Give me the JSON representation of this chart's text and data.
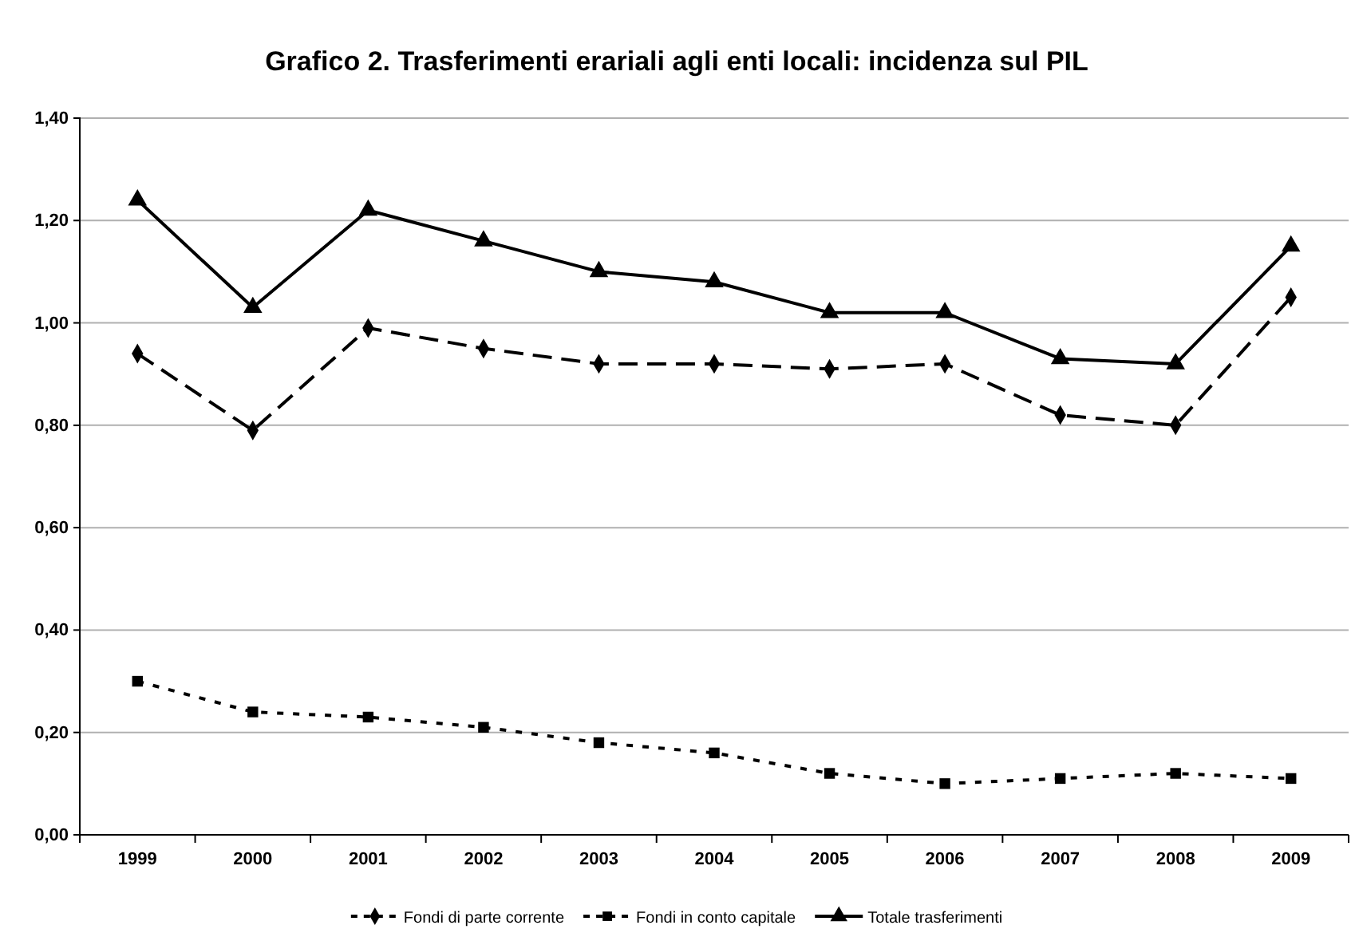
{
  "chart_data": {
    "type": "line",
    "title": "Grafico 2. Trasferimenti erariali agli enti locali: incidenza sul PIL",
    "categories": [
      "1999",
      "2000",
      "2001",
      "2002",
      "2003",
      "2004",
      "2005",
      "2006",
      "2007",
      "2008",
      "2009"
    ],
    "series": [
      {
        "name": "Fondi di parte corrente",
        "color": "#000000",
        "marker": "diamond",
        "line_style": "dashed",
        "values": [
          0.94,
          0.79,
          0.99,
          0.95,
          0.92,
          0.92,
          0.91,
          0.92,
          0.82,
          0.8,
          1.05
        ]
      },
      {
        "name": "Fondi in conto capitale",
        "color": "#000000",
        "marker": "square",
        "line_style": "dotted",
        "values": [
          0.3,
          0.24,
          0.23,
          0.21,
          0.18,
          0.16,
          0.12,
          0.1,
          0.11,
          0.12,
          0.11
        ]
      },
      {
        "name": "Totale trasferimenti",
        "color": "#000000",
        "marker": "triangle",
        "line_style": "solid",
        "values": [
          1.24,
          1.03,
          1.22,
          1.16,
          1.1,
          1.08,
          1.02,
          1.02,
          0.93,
          0.92,
          1.15
        ]
      }
    ],
    "ylim": [
      0,
      1.4
    ],
    "yticks": [
      {
        "value": 0,
        "label": "0,00"
      },
      {
        "value": 0.2,
        "label": "0,20"
      },
      {
        "value": 0.4,
        "label": "0,40"
      },
      {
        "value": 0.6,
        "label": "0,60"
      },
      {
        "value": 0.8,
        "label": "0,80"
      },
      {
        "value": 1.0,
        "label": "1,00"
      },
      {
        "value": 1.2,
        "label": "1,20"
      },
      {
        "value": 1.4,
        "label": "1,40"
      }
    ],
    "grid": "y",
    "legend": "bottom"
  }
}
